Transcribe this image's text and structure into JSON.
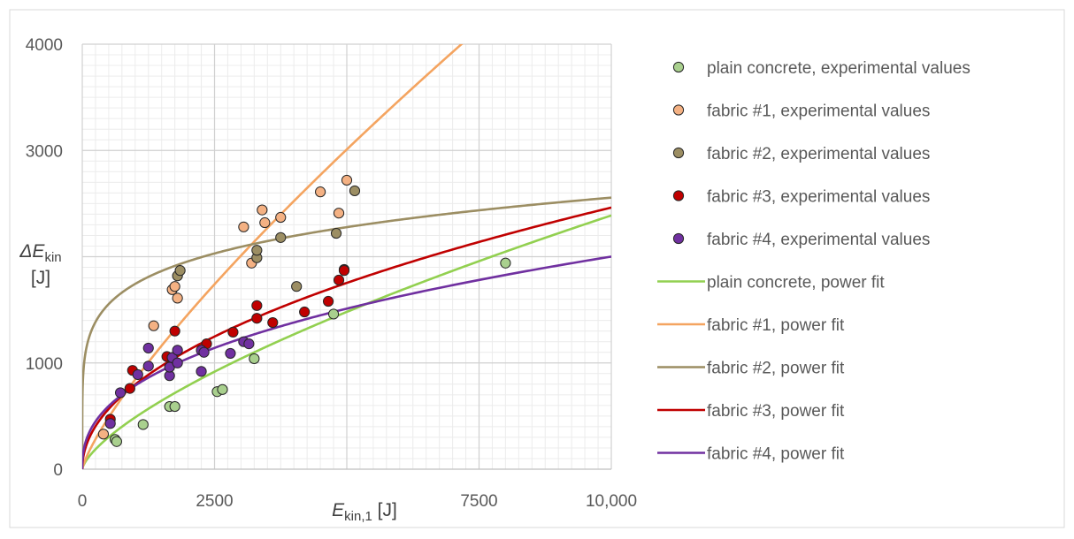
{
  "chart_data": {
    "type": "scatter",
    "xlabel": {
      "main": "E",
      "sub": "kin,1",
      "unit": " [J]"
    },
    "ylabel": {
      "delta": "ΔE",
      "sub": "kin",
      "unit": "[J]"
    },
    "xlim": [
      0,
      10000
    ],
    "ylim": [
      0,
      4000
    ],
    "x_ticks": [
      0,
      2500,
      5000,
      7500,
      10000
    ],
    "x_tick_labels": [
      "0",
      "2500",
      "",
      "7500",
      "10,000"
    ],
    "y_ticks": [
      0,
      1000,
      2000,
      3000,
      4000
    ],
    "y_tick_labels": [
      "0",
      "1000",
      "",
      "3000",
      "4000"
    ],
    "grid": true,
    "legend_position": "right",
    "series": [
      {
        "name": "plain concrete, experimental values",
        "type": "scatter",
        "color": "#a9d08e",
        "points": [
          [
            620,
            280
          ],
          [
            650,
            260
          ],
          [
            1150,
            420
          ],
          [
            1650,
            590
          ],
          [
            1750,
            590
          ],
          [
            2550,
            730
          ],
          [
            2650,
            750
          ],
          [
            3250,
            1040
          ],
          [
            4750,
            1460
          ],
          [
            8000,
            1940
          ]
        ]
      },
      {
        "name": "fabric #1, experimental values",
        "type": "scatter",
        "color": "#f4b183",
        "points": [
          [
            400,
            330
          ],
          [
            1350,
            1350
          ],
          [
            1700,
            1690
          ],
          [
            1750,
            1720
          ],
          [
            1800,
            1610
          ],
          [
            3050,
            2280
          ],
          [
            3200,
            1940
          ],
          [
            3400,
            2440
          ],
          [
            3450,
            2320
          ],
          [
            3750,
            2370
          ],
          [
            4500,
            2610
          ],
          [
            4850,
            2410
          ],
          [
            5000,
            2720
          ]
        ]
      },
      {
        "name": "fabric #2, experimental values",
        "type": "scatter",
        "color": "#9c8e63",
        "points": [
          [
            1800,
            1820
          ],
          [
            1850,
            1870
          ],
          [
            3300,
            1990
          ],
          [
            3300,
            2060
          ],
          [
            3750,
            2180
          ],
          [
            4050,
            1720
          ],
          [
            4800,
            2220
          ],
          [
            5150,
            2620
          ]
        ]
      },
      {
        "name": "fabric #3, experimental values",
        "type": "scatter",
        "color": "#c00000",
        "points": [
          [
            530,
            470
          ],
          [
            900,
            760
          ],
          [
            950,
            930
          ],
          [
            1600,
            1060
          ],
          [
            1700,
            1050
          ],
          [
            1750,
            1300
          ],
          [
            2350,
            1180
          ],
          [
            2850,
            1290
          ],
          [
            3300,
            1420
          ],
          [
            3300,
            1540
          ],
          [
            3600,
            1380
          ],
          [
            4200,
            1480
          ],
          [
            4650,
            1580
          ],
          [
            4850,
            1780
          ],
          [
            4950,
            1880
          ],
          [
            4950,
            1870
          ]
        ]
      },
      {
        "name": "fabric #4, experimental values",
        "type": "scatter",
        "color": "#7030a0",
        "points": [
          [
            530,
            430
          ],
          [
            720,
            720
          ],
          [
            1050,
            890
          ],
          [
            1250,
            970
          ],
          [
            1250,
            1140
          ],
          [
            1650,
            880
          ],
          [
            1650,
            960
          ],
          [
            1700,
            1050
          ],
          [
            1800,
            1120
          ],
          [
            1800,
            1000
          ],
          [
            2250,
            1120
          ],
          [
            2250,
            920
          ],
          [
            2300,
            1100
          ],
          [
            2800,
            1090
          ],
          [
            3050,
            1200
          ],
          [
            3150,
            1180
          ]
        ]
      },
      {
        "name": "plain concrete, power fit",
        "type": "line",
        "color": "#92d050",
        "a": 4.15,
        "b": 0.69
      },
      {
        "name": "fabric #1, power fit",
        "type": "line",
        "color": "#f4a460",
        "a": 3.6,
        "b": 0.79
      },
      {
        "name": "fabric #2, power fit",
        "type": "line",
        "color": "#9c8e63",
        "a": 554,
        "b": 0.166
      },
      {
        "name": "fabric #3, power fit",
        "type": "line",
        "color": "#c00000",
        "a": 27.0,
        "b": 0.49
      },
      {
        "name": "fabric #4, power fit",
        "type": "line",
        "color": "#7030a0",
        "a": 48.0,
        "b": 0.405
      }
    ]
  }
}
